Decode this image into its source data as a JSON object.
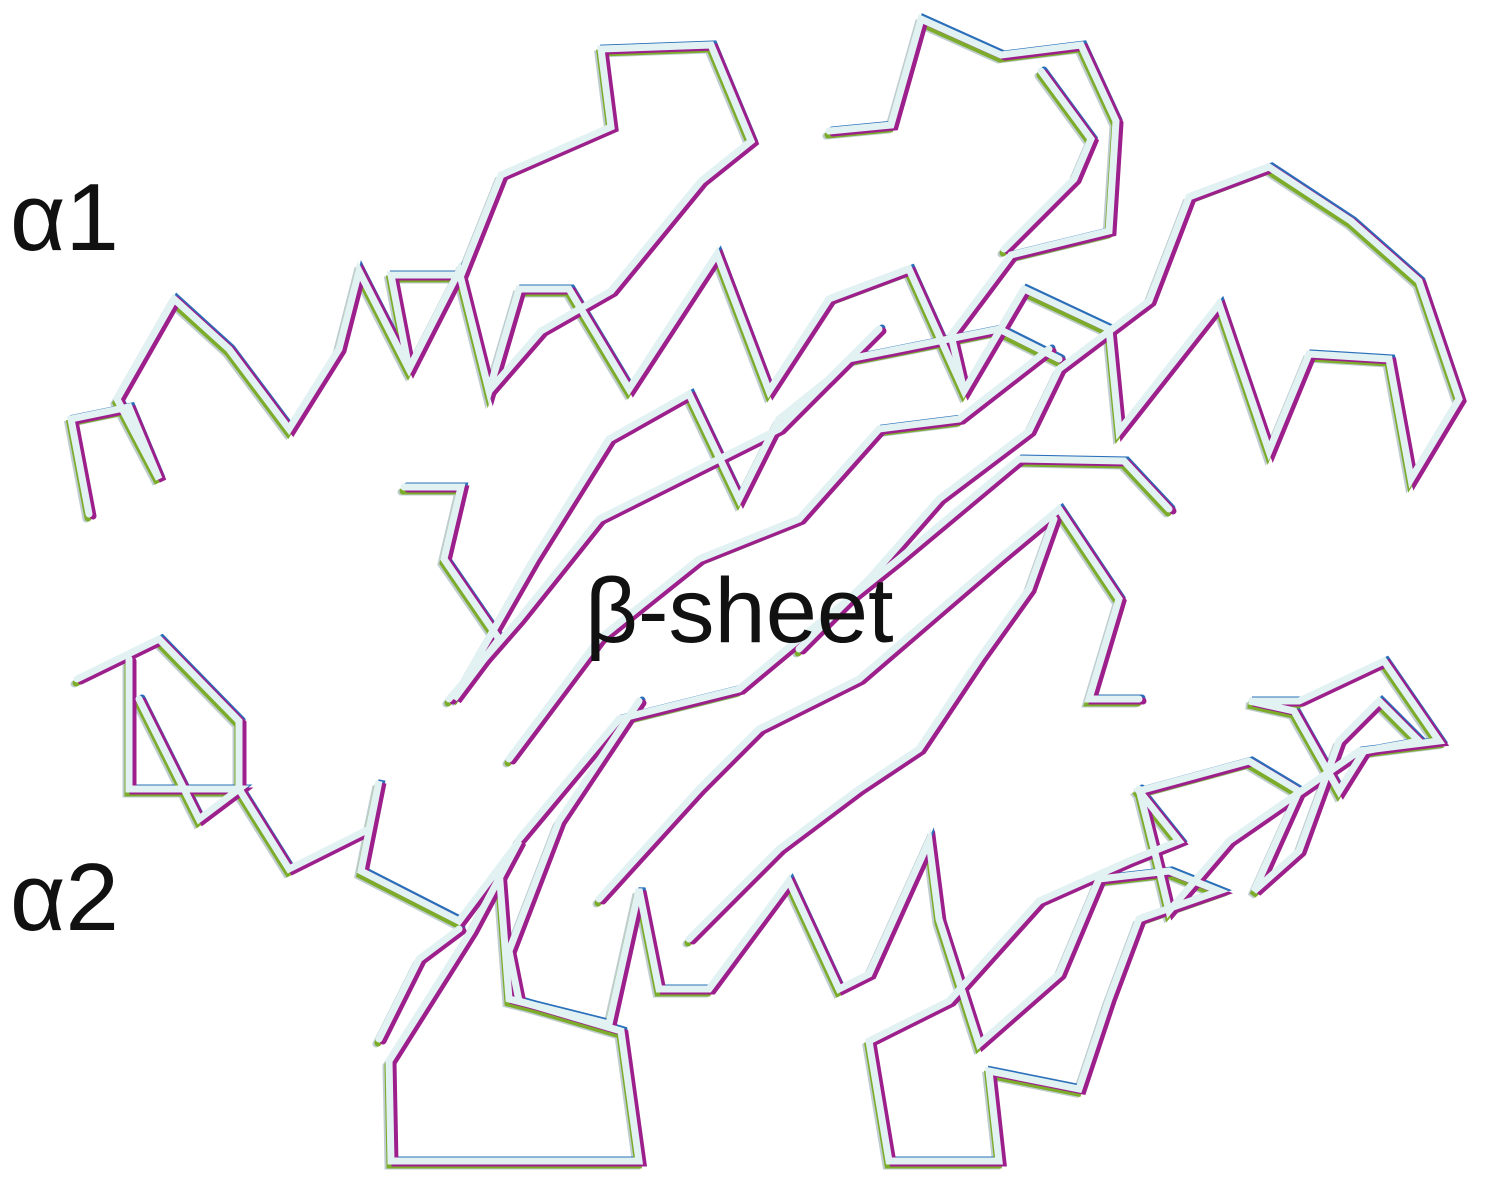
{
  "labels": {
    "helix_1": "α1",
    "helix_2": "α2",
    "sheet": "β-sheet"
  }
}
